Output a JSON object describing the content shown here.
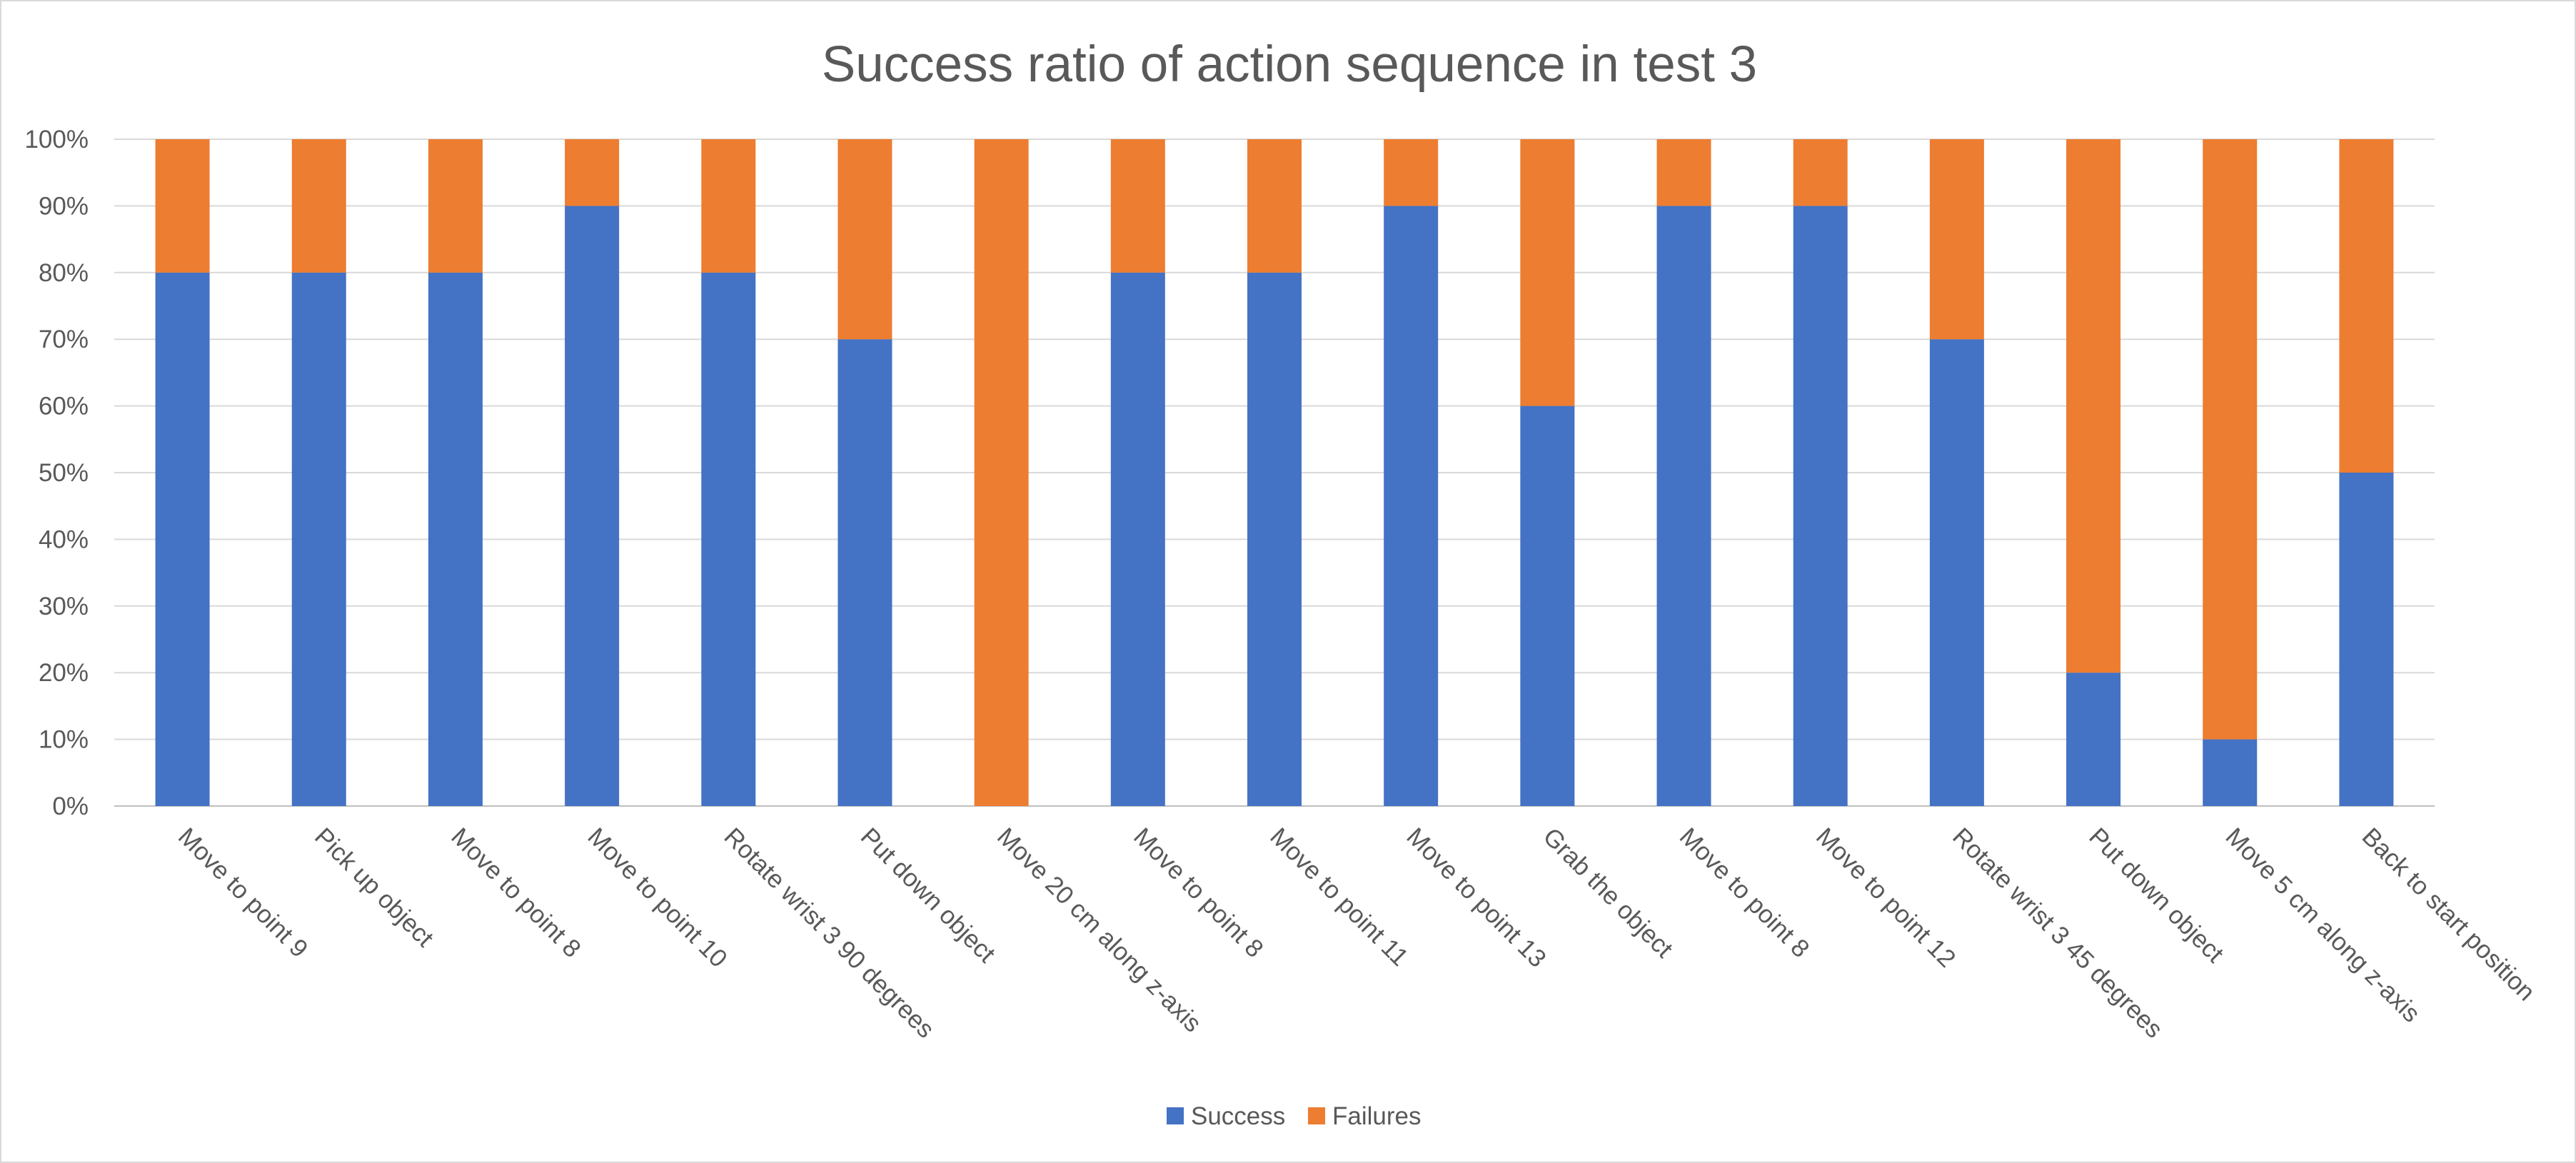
{
  "chart_data": {
    "type": "bar",
    "stacked": true,
    "percent_stacked": true,
    "title": "Success ratio of action sequence in test 3",
    "xlabel": "",
    "ylabel": "",
    "ylim": [
      0,
      100
    ],
    "y_ticks": [
      "0%",
      "10%",
      "20%",
      "30%",
      "40%",
      "50%",
      "60%",
      "70%",
      "80%",
      "90%",
      "100%"
    ],
    "grid": true,
    "legend_position": "bottom",
    "categories": [
      "Move to point 9",
      "Pick up object",
      "Move to point 8",
      "Move to point 10",
      "Rotate wrist 3 90 degrees",
      "Put down object",
      "Move 20 cm along z-axis",
      "Move to point 8",
      "Move to point 11",
      "Move to point 13",
      "Grab the object",
      "Move to point 8",
      "Move to point 12",
      "Rotate wrist 3 45 degrees",
      "Put down object",
      "Move 5 cm along z-axis",
      "Back to start position"
    ],
    "series": [
      {
        "name": "Success",
        "color": "#4472c4",
        "values": [
          80,
          80,
          80,
          90,
          80,
          70,
          0,
          80,
          80,
          90,
          60,
          90,
          90,
          70,
          20,
          10,
          50
        ]
      },
      {
        "name": "Failures",
        "color": "#ed7d31",
        "values": [
          20,
          20,
          20,
          10,
          20,
          30,
          100,
          20,
          20,
          10,
          40,
          10,
          10,
          30,
          80,
          90,
          50
        ]
      }
    ]
  }
}
